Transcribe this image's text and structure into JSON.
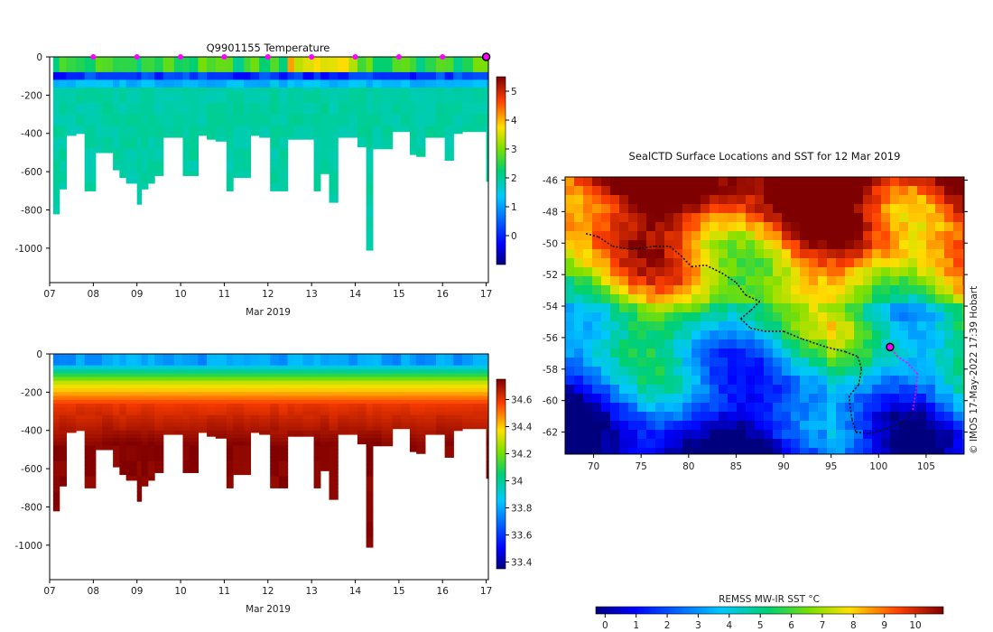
{
  "chart_data": [
    {
      "type": "heatmap",
      "title": "Q9901155  Temperature",
      "xlabel": "Mar 2019",
      "x_ticks": [
        "07",
        "08",
        "09",
        "10",
        "11",
        "12",
        "13",
        "14",
        "15",
        "16",
        "17"
      ],
      "xlim": [
        7,
        17.05
      ],
      "ylim": [
        0,
        -1180
      ],
      "y_ticks": [
        0,
        -200,
        -400,
        -600,
        -800,
        -1000
      ],
      "colorbar": {
        "ticks": [
          0,
          1,
          2,
          3,
          4,
          5
        ],
        "range": [
          -1,
          5.5
        ]
      },
      "profiles": {
        "times": [
          7.08,
          7.22,
          7.38,
          7.6,
          7.8,
          8.05,
          8.2,
          8.45,
          8.6,
          8.75,
          9,
          9.1,
          9.25,
          9.4,
          9.6,
          9.85,
          10.05,
          10.2,
          10.4,
          10.6,
          10.8,
          11.05,
          11.2,
          11.45,
          11.6,
          11.8,
          12.05,
          12.25,
          12.45,
          12.6,
          12.8,
          13.05,
          13.2,
          13.4,
          13.6,
          13.85,
          14.05,
          14.25,
          14.4,
          14.6,
          14.85,
          15.05,
          15.25,
          15.4,
          15.6,
          15.85,
          16.05,
          16.25,
          16.45,
          16.7,
          17
        ],
        "max_depth": [
          820,
          690,
          410,
          400,
          700,
          500,
          500,
          590,
          630,
          660,
          770,
          690,
          660,
          620,
          420,
          420,
          620,
          620,
          410,
          430,
          440,
          700,
          630,
          630,
          410,
          420,
          700,
          700,
          430,
          430,
          430,
          700,
          610,
          760,
          420,
          420,
          470,
          1010,
          480,
          480,
          390,
          390,
          510,
          520,
          420,
          420,
          540,
          400,
          390,
          390,
          650
        ],
        "min_temp_depth": 110,
        "deep_temp": 2.0
      },
      "surface_markers": [
        8,
        9,
        10,
        11,
        12,
        13,
        14,
        15,
        16
      ],
      "current_marker": 17.0
    },
    {
      "type": "heatmap",
      "title": "",
      "xlabel": "Mar 2019",
      "x_ticks": [
        "07",
        "08",
        "09",
        "10",
        "11",
        "12",
        "13",
        "14",
        "15",
        "16",
        "17"
      ],
      "xlim": [
        7,
        17.05
      ],
      "ylim": [
        0,
        -1180
      ],
      "y_ticks": [
        0,
        -200,
        -400,
        -600,
        -800,
        -1000
      ],
      "colorbar": {
        "ticks": [
          33.4,
          33.6,
          33.8,
          34,
          34.2,
          34.4,
          34.6
        ],
        "range": [
          33.35,
          34.75
        ]
      },
      "variable": "salinity"
    },
    {
      "type": "heatmap",
      "title": "SealCTD Surface Locations and SST for 12 Mar 2019",
      "x_ticks": [
        "70",
        "75",
        "80",
        "85",
        "90",
        "95",
        "100",
        "105"
      ],
      "y_ticks": [
        "-46",
        "-48",
        "-50",
        "-52",
        "-54",
        "-56",
        "-58",
        "-60",
        "-62"
      ],
      "xlim": [
        67,
        109
      ],
      "ylim": [
        -63.4,
        -45.8
      ],
      "colorbar": {
        "label": "REMSS MW-IR SST °C",
        "ticks": [
          0,
          1,
          2,
          3,
          4,
          5,
          6,
          7,
          8,
          9,
          10
        ],
        "range": [
          -0.3,
          10.9
        ]
      },
      "track": [
        [
          69.2,
          -49.4
        ],
        [
          70.5,
          -49.6
        ],
        [
          72,
          -50.2
        ],
        [
          74,
          -50.4
        ],
        [
          76.5,
          -50.2
        ],
        [
          78,
          -50.2
        ],
        [
          79.2,
          -50.8
        ],
        [
          80.3,
          -51.5
        ],
        [
          81.8,
          -51.4
        ],
        [
          83.5,
          -51.9
        ],
        [
          85,
          -52.5
        ],
        [
          86,
          -53.3
        ],
        [
          87.5,
          -53.7
        ],
        [
          86.5,
          -54.3
        ],
        [
          85.5,
          -54.8
        ],
        [
          86.5,
          -55.4
        ],
        [
          88,
          -55.6
        ],
        [
          90,
          -55.6
        ],
        [
          92,
          -56.1
        ],
        [
          94.5,
          -56.6
        ],
        [
          96.5,
          -56.9
        ],
        [
          97.8,
          -57.2
        ],
        [
          98.2,
          -58
        ],
        [
          97.9,
          -59
        ],
        [
          96.9,
          -59.7
        ],
        [
          97,
          -60.4
        ],
        [
          97.2,
          -61.2
        ],
        [
          97.6,
          -62
        ],
        [
          99,
          -62.1
        ],
        [
          100.8,
          -61.8
        ],
        [
          102.5,
          -61.4
        ],
        [
          103.6,
          -60.6
        ],
        [
          103.9,
          -59.5
        ],
        [
          104.1,
          -58.3
        ],
        [
          103,
          -57.6
        ],
        [
          102,
          -57.2
        ],
        [
          101.2,
          -56.6
        ]
      ],
      "magenta_from_index": 31,
      "current_position": [
        101.2,
        -56.6
      ]
    }
  ],
  "watermark": "© IMOS 17-May-2022 17:39 Hobart",
  "colors": {
    "background": "#ffffff",
    "marker": "#ff00ff",
    "track": "#111111"
  }
}
